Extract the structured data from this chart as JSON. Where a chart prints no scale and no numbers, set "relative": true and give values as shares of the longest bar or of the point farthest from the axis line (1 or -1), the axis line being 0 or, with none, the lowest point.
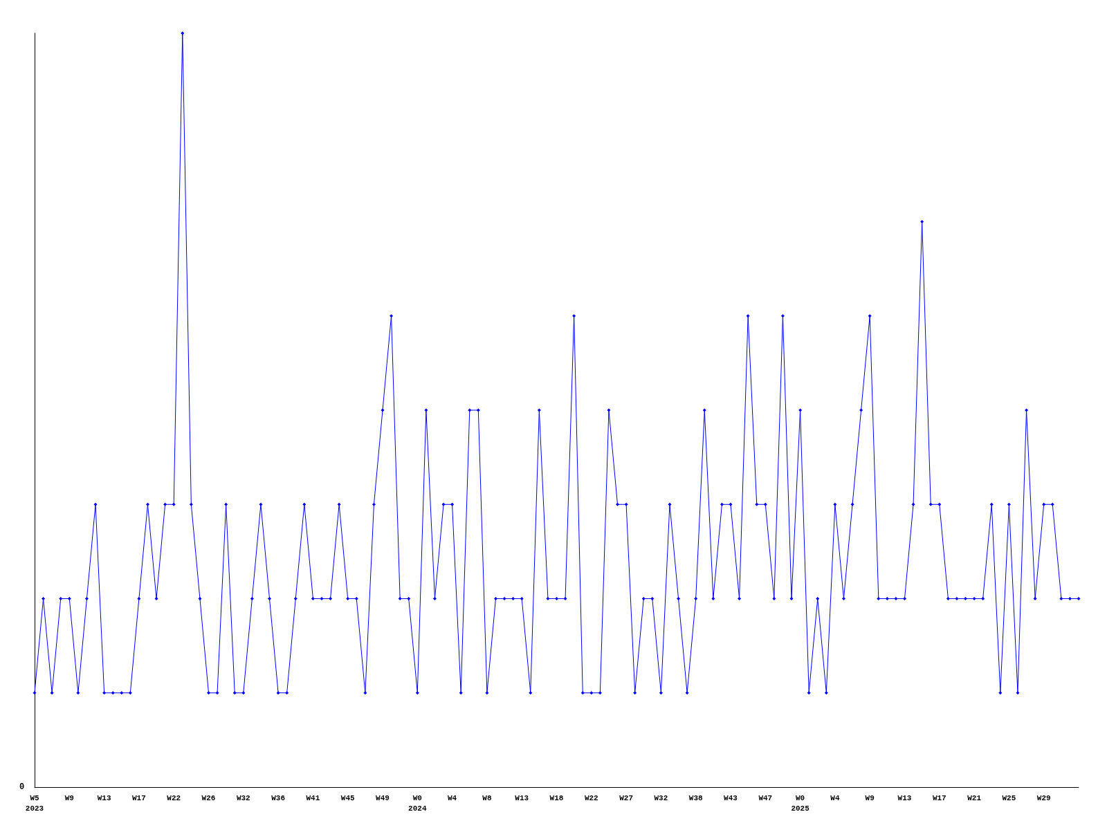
{
  "chart_data": {
    "type": "line",
    "relative": true,
    "color": "#0000ff",
    "marker": "diamond",
    "annotations": [
      "0"
    ],
    "categories": [
      "W5\n2023",
      null,
      null,
      null,
      "W9",
      null,
      null,
      null,
      "W13",
      null,
      null,
      null,
      "W17",
      null,
      null,
      null,
      "W22",
      null,
      null,
      null,
      "W26",
      null,
      null,
      null,
      "W32",
      null,
      null,
      null,
      "W36",
      null,
      null,
      null,
      "W41",
      null,
      null,
      null,
      "W45",
      null,
      null,
      null,
      "W49",
      null,
      null,
      null,
      "W0\n2024",
      null,
      null,
      null,
      "W4",
      null,
      null,
      null,
      "W8",
      null,
      null,
      null,
      "W13",
      null,
      null,
      null,
      "W18",
      null,
      null,
      null,
      "W22",
      null,
      null,
      null,
      "W27",
      null,
      null,
      null,
      "W32",
      null,
      null,
      null,
      "W38",
      null,
      null,
      null,
      "W43",
      null,
      null,
      null,
      "W47",
      null,
      null,
      null,
      "W0\n2025",
      null,
      null,
      null,
      "W4",
      null,
      null,
      null,
      "W9",
      null,
      null,
      null,
      "W13",
      null,
      null,
      null,
      "W17",
      null,
      null,
      null,
      "W21",
      null,
      null,
      null,
      "W25",
      null,
      null,
      null,
      "W29",
      null,
      null,
      null,
      null
    ],
    "values": [
      0.125,
      0.25,
      0.125,
      0.25,
      0.25,
      0.125,
      0.25,
      0.375,
      0.125,
      0.125,
      0.125,
      0.125,
      0.25,
      0.375,
      0.25,
      0.375,
      0.375,
      1,
      0.375,
      0.25,
      0.125,
      0.125,
      0.375,
      0.125,
      0.125,
      0.25,
      0.375,
      0.25,
      0.125,
      0.125,
      0.25,
      0.375,
      0.25,
      0.25,
      0.25,
      0.375,
      0.25,
      0.25,
      0.125,
      0.375,
      0.5,
      0.625,
      0.25,
      0.25,
      0.125,
      0.5,
      0.25,
      0.375,
      0.375,
      0.125,
      0.5,
      0.5,
      0.125,
      0.25,
      0.25,
      0.25,
      0.25,
      0.125,
      0.5,
      0.25,
      0.25,
      0.25,
      0.625,
      0.125,
      0.125,
      0.125,
      0.5,
      0.375,
      0.375,
      0.125,
      0.25,
      0.25,
      0.125,
      0.375,
      0.25,
      0.125,
      0.25,
      0.5,
      0.25,
      0.375,
      0.375,
      0.25,
      0.625,
      0.375,
      0.375,
      0.25,
      0.625,
      0.25,
      0.5,
      0.125,
      0.25,
      0.125,
      0.375,
      0.25,
      0.375,
      0.5,
      0.625,
      0.25,
      0.25,
      0.25,
      0.25,
      0.375,
      0.75,
      0.375,
      0.375,
      0.25,
      0.25,
      0.25,
      0.25,
      0.25,
      0.375,
      0.125,
      0.375,
      0.125,
      0.5,
      0.25,
      0.375,
      0.375,
      0.25,
      0.25,
      0.25
    ]
  }
}
